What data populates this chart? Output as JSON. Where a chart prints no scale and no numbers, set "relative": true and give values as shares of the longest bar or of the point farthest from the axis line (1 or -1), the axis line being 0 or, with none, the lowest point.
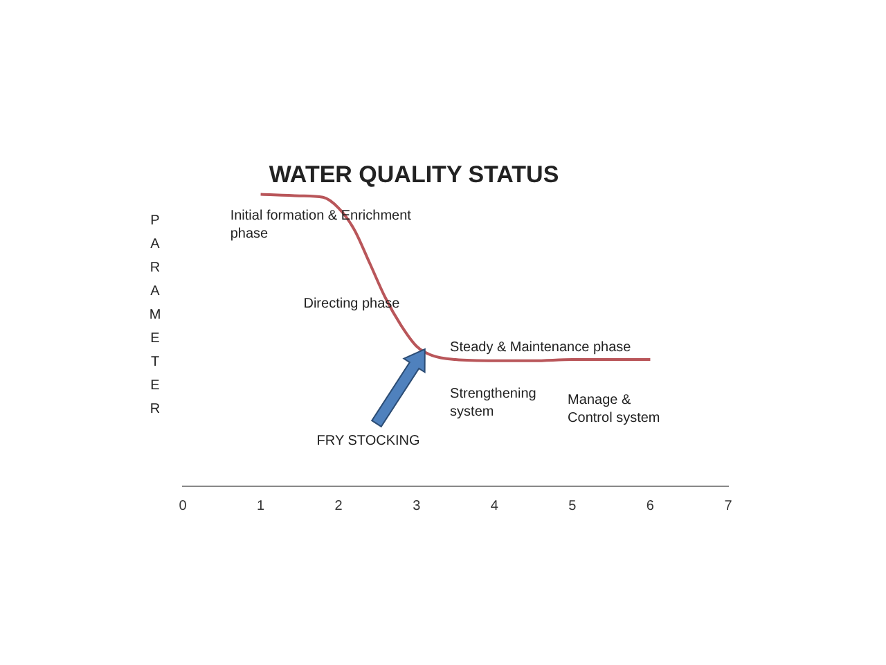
{
  "chart_data": {
    "type": "line",
    "title": "WATER QUALITY STATUS",
    "ylabel": "PARAMETER",
    "relative": true,
    "marker": "none",
    "grid": false,
    "legend": false,
    "xlim": [
      0,
      7
    ],
    "xticks": [
      0,
      1,
      2,
      3,
      4,
      5,
      6,
      7
    ],
    "series": [
      {
        "color": "#b9565a",
        "x": [
          1,
          1.5,
          1.8,
          2,
          2.2,
          2.4,
          2.6,
          2.8,
          3,
          3.2,
          3.5,
          4,
          4.5,
          5,
          6
        ],
        "values": [
          1,
          0.995,
          0.99,
          0.953,
          0.88,
          0.764,
          0.646,
          0.552,
          0.48,
          0.448,
          0.434,
          0.43,
          0.43,
          0.434,
          0.434
        ]
      }
    ],
    "annotations": [
      "Initial formation & Enrichment phase",
      "Directing phase",
      "Steady & Maintenance phase",
      "Strengthening system",
      "Manage & Control system",
      "FRY STOCKING"
    ]
  }
}
